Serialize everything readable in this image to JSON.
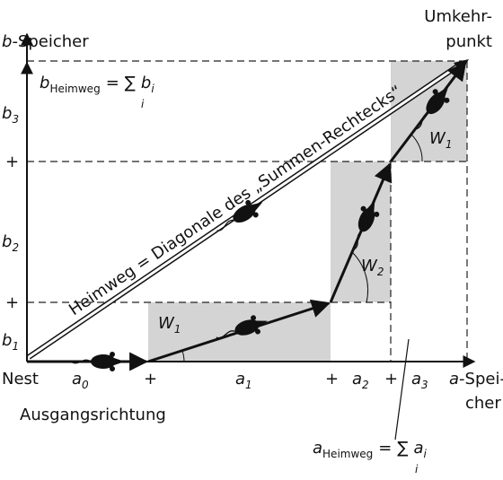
{
  "labels": {
    "y_axis": {
      "var": "b",
      "text": "-Speicher"
    },
    "x_axis": {
      "var": "a",
      "lines": [
        "-Spei-",
        "cher"
      ]
    },
    "turn_point": [
      "Umkehr-",
      "punkt"
    ],
    "origin": "Nest",
    "start_direction": "Ausgangsrichtung",
    "diagonal": "Heimweg = Diagonale des „Summen-Rechtecks“",
    "plus": "+",
    "b_formula": {
      "lhs": "b",
      "lhs_sub": "Heimweg",
      "eq": "=",
      "sum": "∑",
      "index": "i",
      "term": "b",
      "term_sub": "i"
    },
    "a_formula": {
      "lhs": "a",
      "lhs_sub": "Heimweg",
      "eq": "=",
      "sum": "∑",
      "index": "i",
      "term": "a",
      "term_sub": "i"
    },
    "y_segments": [
      {
        "var": "b",
        "sub": "1"
      },
      {
        "var": "b",
        "sub": "2"
      },
      {
        "var": "b",
        "sub": "3"
      }
    ],
    "x_segments": [
      {
        "var": "a",
        "sub": "0"
      },
      {
        "var": "a",
        "sub": "1"
      },
      {
        "var": "a",
        "sub": "2"
      },
      {
        "var": "a",
        "sub": "3"
      }
    ],
    "angles": [
      {
        "var": "W",
        "sub": "1"
      },
      {
        "var": "W",
        "sub": "2"
      },
      {
        "var": "W",
        "sub": "1"
      }
    ]
  }
}
